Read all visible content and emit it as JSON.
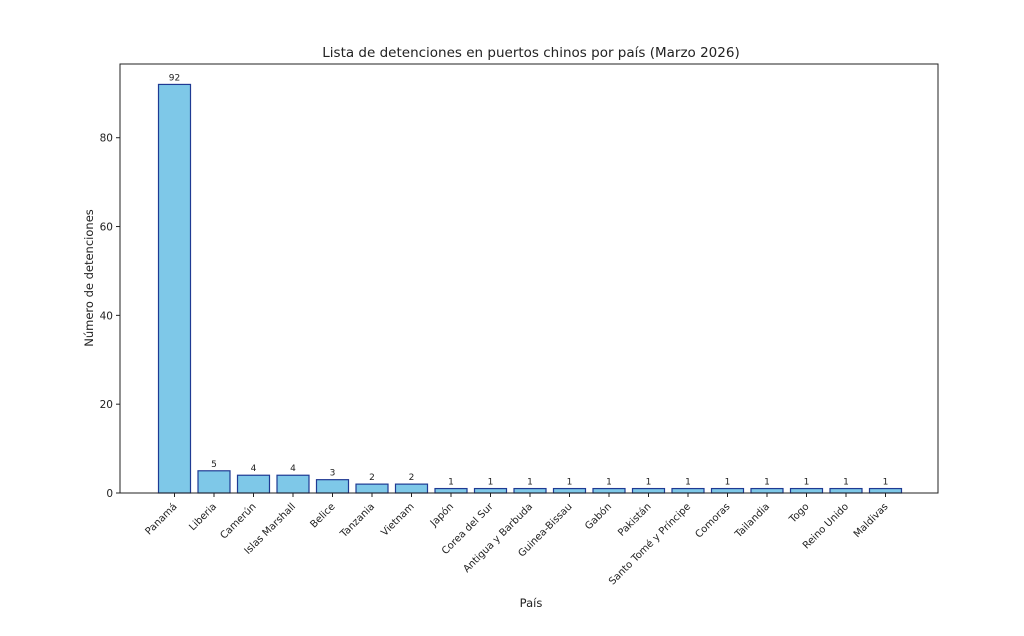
{
  "chart_data": {
    "type": "bar",
    "title": "Lista de detenciones en puertos chinos por país (Marzo 2026)",
    "xlabel": "País",
    "ylabel": "Número de detenciones",
    "categories": [
      "Panamá",
      "Liberia",
      "Camerún",
      "Islas Marshall",
      "Belice",
      "Tanzania",
      "Vietnam",
      "Japón",
      "Corea del Sur",
      "Antigua y Barbuda",
      "Guinea-Bissau",
      "Gabón",
      "Pakistán",
      "Santo Tomé y Príncipe",
      "Comoras",
      "Tailandia",
      "Togo",
      "Reino Unido",
      "Maldivas"
    ],
    "values": [
      92,
      5,
      4,
      4,
      3,
      2,
      2,
      1,
      1,
      1,
      1,
      1,
      1,
      1,
      1,
      1,
      1,
      1,
      1
    ],
    "yticks": [
      0,
      20,
      40,
      60,
      80
    ],
    "ylim": [
      0,
      96.6
    ],
    "grid": false,
    "colors": {
      "bar_fill": "#7ec8e8",
      "bar_edge": "#1f3a93"
    }
  }
}
